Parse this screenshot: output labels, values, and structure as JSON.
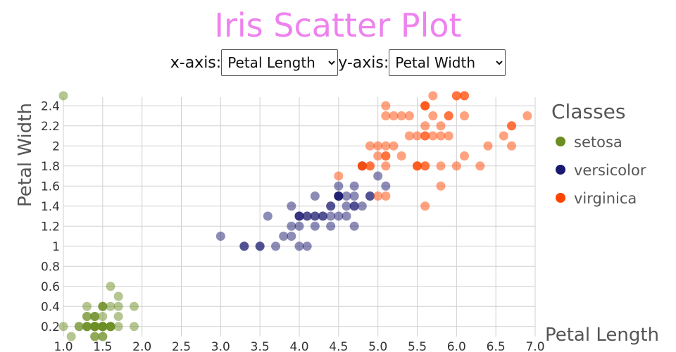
{
  "title": "Iris Scatter Plot",
  "controls": {
    "x_label": "x-axis:",
    "x_selected": "Petal Length",
    "y_label": "y-axis:",
    "y_selected": "Petal Width"
  },
  "colors": {
    "title": "#ee82ee",
    "setosa": "#6b8e23",
    "versicolor": "#191970",
    "virginica": "#ff4500",
    "grid": "#d0d0d0",
    "text": "#333333"
  },
  "chart_data": {
    "type": "scatter",
    "xlabel": "Petal Length",
    "ylabel": "Petal Width",
    "xlim": [
      1.0,
      7.0
    ],
    "ylim": [
      0.1,
      2.5
    ],
    "x_ticks": [
      1.0,
      1.5,
      2.0,
      2.5,
      3.0,
      3.5,
      4.0,
      4.5,
      5.0,
      5.5,
      6.0,
      6.5,
      7.0
    ],
    "x_tick_labels": [
      "1.0",
      "1.5",
      "2.0",
      "2.5",
      "3.0",
      "3.5",
      "4.0",
      "4.5",
      "5.0",
      "5.5",
      "6.0",
      "6.5",
      "7.0"
    ],
    "y_ticks": [
      0.2,
      0.4,
      0.6,
      0.8,
      1.0,
      1.2,
      1.4,
      1.6,
      1.8,
      2.0,
      2.2,
      2.4
    ],
    "y_tick_labels": [
      "0.2",
      "0.4",
      "0.6",
      "0.8",
      "1",
      "1.2",
      "1.4",
      "1.6",
      "1.8",
      "2",
      "2.2",
      "2.4"
    ],
    "grid": true,
    "legend": {
      "title": "Classes",
      "position": "right",
      "entries": [
        "setosa",
        "versicolor",
        "virginica"
      ]
    },
    "series": [
      {
        "name": "setosa",
        "points": [
          [
            1.4,
            0.2
          ],
          [
            1.4,
            0.2
          ],
          [
            1.3,
            0.2
          ],
          [
            1.5,
            0.2
          ],
          [
            1.4,
            0.2
          ],
          [
            1.7,
            0.4
          ],
          [
            1.4,
            0.3
          ],
          [
            1.5,
            0.2
          ],
          [
            1.4,
            0.2
          ],
          [
            1.5,
            0.1
          ],
          [
            1.5,
            0.2
          ],
          [
            1.6,
            0.2
          ],
          [
            1.4,
            0.1
          ],
          [
            1.1,
            0.1
          ],
          [
            1.2,
            0.2
          ],
          [
            1.5,
            0.4
          ],
          [
            1.3,
            0.4
          ],
          [
            1.4,
            0.3
          ],
          [
            1.7,
            0.3
          ],
          [
            1.5,
            0.3
          ],
          [
            1.7,
            0.2
          ],
          [
            1.5,
            0.4
          ],
          [
            1.0,
            0.2
          ],
          [
            1.7,
            0.5
          ],
          [
            1.9,
            0.2
          ],
          [
            1.6,
            0.2
          ],
          [
            1.6,
            0.4
          ],
          [
            1.5,
            0.2
          ],
          [
            1.4,
            0.2
          ],
          [
            1.6,
            0.2
          ],
          [
            1.6,
            0.2
          ],
          [
            1.5,
            0.4
          ],
          [
            1.5,
            0.1
          ],
          [
            1.4,
            0.2
          ],
          [
            1.5,
            0.2
          ],
          [
            1.2,
            0.2
          ],
          [
            1.3,
            0.2
          ],
          [
            1.4,
            0.1
          ],
          [
            1.3,
            0.2
          ],
          [
            1.5,
            0.2
          ],
          [
            1.3,
            0.3
          ],
          [
            1.3,
            0.3
          ],
          [
            1.3,
            0.2
          ],
          [
            1.6,
            0.6
          ],
          [
            1.9,
            0.4
          ],
          [
            1.4,
            0.3
          ],
          [
            1.6,
            0.2
          ],
          [
            1.4,
            0.2
          ],
          [
            1.5,
            0.2
          ],
          [
            1.4,
            0.2
          ],
          [
            1.0,
            2.5
          ]
        ]
      },
      {
        "name": "versicolor",
        "points": [
          [
            4.7,
            1.4
          ],
          [
            4.5,
            1.5
          ],
          [
            4.9,
            1.5
          ],
          [
            4.0,
            1.3
          ],
          [
            4.6,
            1.5
          ],
          [
            4.5,
            1.3
          ],
          [
            4.7,
            1.6
          ],
          [
            3.3,
            1.0
          ],
          [
            4.6,
            1.3
          ],
          [
            3.9,
            1.4
          ],
          [
            3.5,
            1.0
          ],
          [
            4.2,
            1.5
          ],
          [
            4.0,
            1.0
          ],
          [
            4.7,
            1.4
          ],
          [
            3.6,
            1.3
          ],
          [
            4.4,
            1.4
          ],
          [
            4.5,
            1.5
          ],
          [
            4.1,
            1.0
          ],
          [
            4.5,
            1.5
          ],
          [
            3.9,
            1.1
          ],
          [
            4.8,
            1.8
          ],
          [
            4.0,
            1.3
          ],
          [
            4.9,
            1.5
          ],
          [
            4.7,
            1.2
          ],
          [
            4.3,
            1.3
          ],
          [
            4.4,
            1.4
          ],
          [
            4.8,
            1.4
          ],
          [
            5.0,
            1.7
          ],
          [
            4.5,
            1.5
          ],
          [
            3.5,
            1.0
          ],
          [
            3.8,
            1.1
          ],
          [
            3.7,
            1.0
          ],
          [
            3.9,
            1.2
          ],
          [
            5.1,
            1.6
          ],
          [
            4.5,
            1.5
          ],
          [
            4.5,
            1.6
          ],
          [
            4.7,
            1.5
          ],
          [
            4.4,
            1.3
          ],
          [
            4.1,
            1.3
          ],
          [
            4.0,
            1.3
          ],
          [
            4.4,
            1.2
          ],
          [
            4.6,
            1.4
          ],
          [
            4.0,
            1.2
          ],
          [
            3.3,
            1.0
          ],
          [
            4.2,
            1.3
          ],
          [
            4.2,
            1.2
          ],
          [
            4.2,
            1.3
          ],
          [
            4.3,
            1.3
          ],
          [
            3.0,
            1.1
          ],
          [
            4.1,
            1.3
          ]
        ]
      },
      {
        "name": "virginica",
        "points": [
          [
            6.0,
            2.5
          ],
          [
            5.1,
            1.9
          ],
          [
            5.9,
            2.1
          ],
          [
            5.6,
            1.8
          ],
          [
            5.8,
            2.2
          ],
          [
            6.6,
            2.1
          ],
          [
            4.5,
            1.7
          ],
          [
            6.3,
            1.8
          ],
          [
            5.8,
            1.8
          ],
          [
            6.1,
            2.5
          ],
          [
            5.1,
            2.0
          ],
          [
            5.3,
            1.9
          ],
          [
            5.5,
            2.1
          ],
          [
            5.0,
            2.0
          ],
          [
            5.1,
            2.4
          ],
          [
            5.3,
            2.3
          ],
          [
            5.5,
            1.8
          ],
          [
            6.7,
            2.2
          ],
          [
            6.9,
            2.3
          ],
          [
            5.0,
            1.5
          ],
          [
            5.7,
            2.3
          ],
          [
            4.9,
            2.0
          ],
          [
            6.7,
            2.0
          ],
          [
            4.9,
            1.8
          ],
          [
            5.7,
            2.1
          ],
          [
            6.0,
            1.8
          ],
          [
            4.8,
            1.8
          ],
          [
            4.9,
            1.8
          ],
          [
            5.6,
            2.1
          ],
          [
            5.8,
            1.6
          ],
          [
            6.1,
            1.9
          ],
          [
            6.4,
            2.0
          ],
          [
            5.6,
            2.2
          ],
          [
            5.1,
            1.5
          ],
          [
            5.6,
            1.4
          ],
          [
            6.1,
            2.3
          ],
          [
            5.6,
            2.4
          ],
          [
            5.5,
            1.8
          ],
          [
            4.8,
            1.8
          ],
          [
            5.4,
            2.1
          ],
          [
            5.6,
            2.4
          ],
          [
            5.1,
            2.3
          ],
          [
            5.1,
            1.9
          ],
          [
            5.9,
            2.3
          ],
          [
            5.7,
            2.5
          ],
          [
            5.2,
            2.3
          ],
          [
            5.0,
            1.9
          ],
          [
            5.2,
            2.0
          ],
          [
            5.4,
            2.3
          ],
          [
            5.1,
            1.8
          ],
          [
            6.1,
            2.5
          ],
          [
            6.0,
            2.5
          ],
          [
            6.7,
            2.2
          ],
          [
            4.8,
            1.8
          ],
          [
            5.6,
            1.8
          ],
          [
            5.5,
            1.8
          ],
          [
            5.9,
            2.3
          ],
          [
            5.6,
            2.1
          ],
          [
            5.6,
            2.4
          ],
          [
            5.8,
            2.1
          ]
        ]
      }
    ]
  }
}
